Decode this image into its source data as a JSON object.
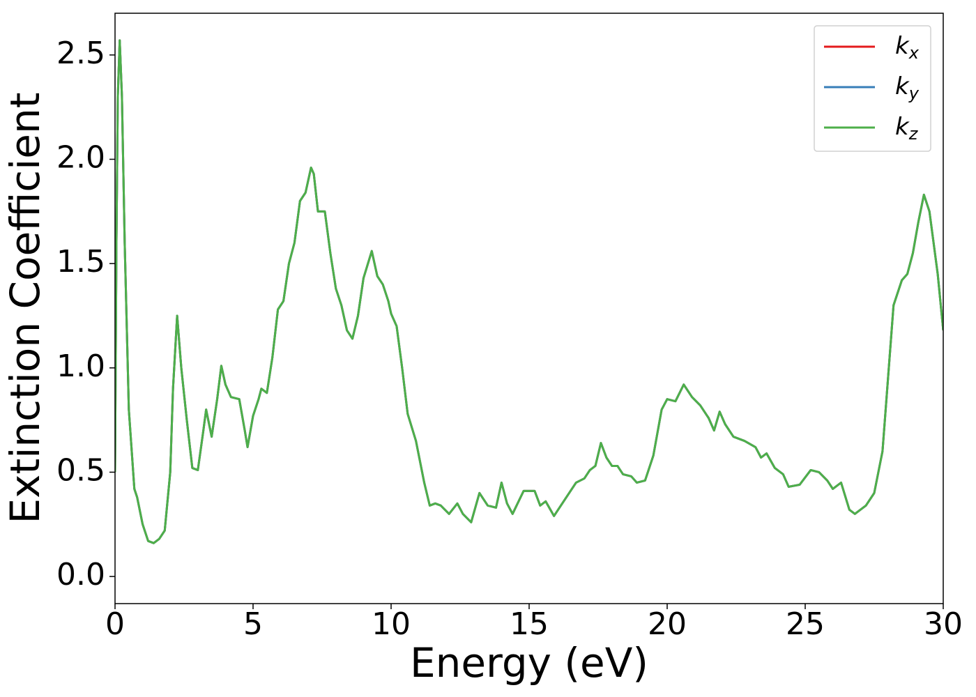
{
  "chart_data": {
    "type": "line",
    "xlabel": "Energy (eV)",
    "ylabel": "Extinction Coefficient",
    "x": [
      0,
      0.05,
      0.1,
      0.17,
      0.25,
      0.35,
      0.5,
      0.7,
      0.8,
      1.0,
      1.2,
      1.4,
      1.6,
      1.8,
      2.0,
      2.1,
      2.25,
      2.4,
      2.6,
      2.8,
      3.0,
      3.2,
      3.3,
      3.5,
      3.7,
      3.85,
      4.0,
      4.2,
      4.5,
      4.7,
      4.8,
      5.0,
      5.2,
      5.3,
      5.5,
      5.7,
      5.9,
      6.1,
      6.3,
      6.5,
      6.7,
      6.9,
      7.1,
      7.2,
      7.35,
      7.6,
      7.8,
      8.0,
      8.2,
      8.4,
      8.6,
      8.8,
      9.0,
      9.3,
      9.5,
      9.7,
      9.9,
      10.0,
      10.2,
      10.4,
      10.6,
      10.9,
      11.2,
      11.4,
      11.6,
      11.8,
      12.1,
      12.4,
      12.6,
      12.9,
      13.2,
      13.5,
      13.8,
      14.0,
      14.2,
      14.4,
      14.8,
      15.0,
      15.2,
      15.4,
      15.6,
      15.9,
      16.3,
      16.7,
      17.0,
      17.2,
      17.4,
      17.6,
      17.8,
      18.0,
      18.2,
      18.4,
      18.7,
      18.9,
      19.2,
      19.5,
      19.8,
      20.0,
      20.3,
      20.6,
      20.9,
      21.2,
      21.5,
      21.7,
      21.9,
      22.1,
      22.4,
      22.8,
      23.2,
      23.4,
      23.6,
      23.9,
      24.2,
      24.4,
      24.8,
      25.2,
      25.5,
      25.8,
      26.0,
      26.3,
      26.6,
      26.8,
      27.0,
      27.2,
      27.5,
      27.8,
      28.0,
      28.2,
      28.5,
      28.7,
      28.9,
      29.1,
      29.3,
      29.5,
      29.8,
      30.0
    ],
    "series": [
      {
        "name": "kx",
        "color": "#e41a1c",
        "values": [
          0.5,
          1.6,
          2.3,
          2.57,
          2.3,
          1.6,
          0.8,
          0.42,
          0.38,
          0.25,
          0.17,
          0.16,
          0.18,
          0.22,
          0.5,
          0.9,
          1.25,
          1.0,
          0.75,
          0.52,
          0.51,
          0.7,
          0.8,
          0.67,
          0.85,
          1.01,
          0.92,
          0.86,
          0.85,
          0.7,
          0.62,
          0.77,
          0.85,
          0.9,
          0.88,
          1.05,
          1.28,
          1.32,
          1.5,
          1.6,
          1.8,
          1.84,
          1.96,
          1.93,
          1.75,
          1.75,
          1.55,
          1.38,
          1.3,
          1.18,
          1.14,
          1.25,
          1.43,
          1.56,
          1.44,
          1.4,
          1.32,
          1.26,
          1.2,
          1.0,
          0.78,
          0.65,
          0.45,
          0.34,
          0.35,
          0.34,
          0.3,
          0.35,
          0.3,
          0.26,
          0.4,
          0.34,
          0.33,
          0.45,
          0.35,
          0.3,
          0.41,
          0.41,
          0.41,
          0.34,
          0.36,
          0.29,
          0.37,
          0.45,
          0.47,
          0.51,
          0.53,
          0.64,
          0.57,
          0.53,
          0.53,
          0.49,
          0.48,
          0.45,
          0.46,
          0.58,
          0.8,
          0.85,
          0.84,
          0.92,
          0.86,
          0.82,
          0.76,
          0.7,
          0.79,
          0.73,
          0.67,
          0.65,
          0.62,
          0.57,
          0.59,
          0.52,
          0.49,
          0.43,
          0.44,
          0.51,
          0.5,
          0.46,
          0.42,
          0.45,
          0.32,
          0.3,
          0.32,
          0.34,
          0.4,
          0.6,
          0.95,
          1.3,
          1.42,
          1.45,
          1.55,
          1.7,
          1.83,
          1.75,
          1.45,
          1.18
        ]
      },
      {
        "name": "ky",
        "color": "#377eb8",
        "values": [
          0.5,
          1.6,
          2.3,
          2.57,
          2.3,
          1.6,
          0.8,
          0.42,
          0.38,
          0.25,
          0.17,
          0.16,
          0.18,
          0.22,
          0.5,
          0.9,
          1.25,
          1.0,
          0.75,
          0.52,
          0.51,
          0.7,
          0.8,
          0.67,
          0.85,
          1.01,
          0.92,
          0.86,
          0.85,
          0.7,
          0.62,
          0.77,
          0.85,
          0.9,
          0.88,
          1.05,
          1.28,
          1.32,
          1.5,
          1.6,
          1.8,
          1.84,
          1.96,
          1.93,
          1.75,
          1.75,
          1.55,
          1.38,
          1.3,
          1.18,
          1.14,
          1.25,
          1.43,
          1.56,
          1.44,
          1.4,
          1.32,
          1.26,
          1.2,
          1.0,
          0.78,
          0.65,
          0.45,
          0.34,
          0.35,
          0.34,
          0.3,
          0.35,
          0.3,
          0.26,
          0.4,
          0.34,
          0.33,
          0.45,
          0.35,
          0.3,
          0.41,
          0.41,
          0.41,
          0.34,
          0.36,
          0.29,
          0.37,
          0.45,
          0.47,
          0.51,
          0.53,
          0.64,
          0.57,
          0.53,
          0.53,
          0.49,
          0.48,
          0.45,
          0.46,
          0.58,
          0.8,
          0.85,
          0.84,
          0.92,
          0.86,
          0.82,
          0.76,
          0.7,
          0.79,
          0.73,
          0.67,
          0.65,
          0.62,
          0.57,
          0.59,
          0.52,
          0.49,
          0.43,
          0.44,
          0.51,
          0.5,
          0.46,
          0.42,
          0.45,
          0.32,
          0.3,
          0.32,
          0.34,
          0.4,
          0.6,
          0.95,
          1.3,
          1.42,
          1.45,
          1.55,
          1.7,
          1.83,
          1.75,
          1.45,
          1.18
        ]
      },
      {
        "name": "kz",
        "color": "#4daf4a",
        "values": [
          0.5,
          1.6,
          2.3,
          2.57,
          2.3,
          1.6,
          0.8,
          0.42,
          0.38,
          0.25,
          0.17,
          0.16,
          0.18,
          0.22,
          0.5,
          0.9,
          1.25,
          1.0,
          0.75,
          0.52,
          0.51,
          0.7,
          0.8,
          0.67,
          0.85,
          1.01,
          0.92,
          0.86,
          0.85,
          0.7,
          0.62,
          0.77,
          0.85,
          0.9,
          0.88,
          1.05,
          1.28,
          1.32,
          1.5,
          1.6,
          1.8,
          1.84,
          1.96,
          1.93,
          1.75,
          1.75,
          1.55,
          1.38,
          1.3,
          1.18,
          1.14,
          1.25,
          1.43,
          1.56,
          1.44,
          1.4,
          1.32,
          1.26,
          1.2,
          1.0,
          0.78,
          0.65,
          0.45,
          0.34,
          0.35,
          0.34,
          0.3,
          0.35,
          0.3,
          0.26,
          0.4,
          0.34,
          0.33,
          0.45,
          0.35,
          0.3,
          0.41,
          0.41,
          0.41,
          0.34,
          0.36,
          0.29,
          0.37,
          0.45,
          0.47,
          0.51,
          0.53,
          0.64,
          0.57,
          0.53,
          0.53,
          0.49,
          0.48,
          0.45,
          0.46,
          0.58,
          0.8,
          0.85,
          0.84,
          0.92,
          0.86,
          0.82,
          0.76,
          0.7,
          0.79,
          0.73,
          0.67,
          0.65,
          0.62,
          0.57,
          0.59,
          0.52,
          0.49,
          0.43,
          0.44,
          0.51,
          0.5,
          0.46,
          0.42,
          0.45,
          0.32,
          0.3,
          0.32,
          0.34,
          0.4,
          0.6,
          0.95,
          1.3,
          1.42,
          1.45,
          1.55,
          1.7,
          1.83,
          1.75,
          1.45,
          1.18
        ]
      }
    ],
    "xlim": [
      0,
      30
    ],
    "xticks": [
      0,
      5,
      10,
      15,
      20,
      25,
      30
    ],
    "ylim": [
      -0.13,
      2.7
    ],
    "yticks": [
      {
        "value": 0,
        "label": "0.0"
      },
      0.5,
      {
        "value": 1,
        "label": "1.0"
      },
      1.5,
      {
        "value": 2,
        "label": "2.0"
      },
      2.5
    ],
    "grid": false,
    "legend": "upper right"
  }
}
